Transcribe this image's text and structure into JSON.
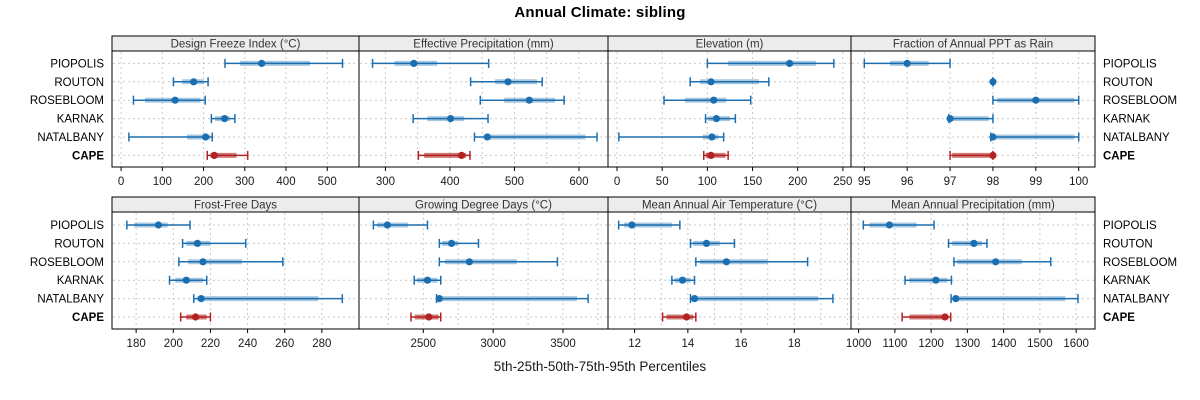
{
  "chart_data": {
    "type": "interval",
    "glyph": "5-25-50-75-95 percentile dot-whisker",
    "title": "Annual Climate: sibling",
    "caption": "5th-25th-50th-75th-95th Percentiles",
    "locations": [
      "PIOPOLIS",
      "ROUTON",
      "ROSEBLOOM",
      "KARNAK",
      "NATALBANY",
      "CAPE"
    ],
    "highlight_location": "CAPE",
    "percentiles": [
      5,
      25,
      50,
      75,
      95
    ],
    "colors": {
      "series_blue": "#1b6fb0",
      "highlight_red": "#b22222",
      "header_fill": "#ececec",
      "panel_border": "#000000",
      "gridline": "#c9c9c9",
      "text": "#1a1a1a"
    },
    "legend_position": "none",
    "grid": "dashed horizontal row guides and vertical tick gridlines",
    "panels": [
      {
        "title": "Design Freeze Index (°C)",
        "row": 0,
        "col": 0,
        "axis_range": [
          -22,
          577
        ],
        "ticks": [
          0,
          100,
          200,
          300,
          400,
          500
        ],
        "minor_gridlines": [],
        "series": {
          "PIOPOLIS": [
            252,
            288,
            341,
            458,
            537
          ],
          "ROUTON": [
            127,
            148,
            176,
            200,
            211
          ],
          "ROSEBLOOM": [
            30,
            58,
            131,
            193,
            204
          ],
          "KARNAK": [
            219,
            228,
            251,
            264,
            276
          ],
          "NATALBANY": [
            19,
            160,
            205,
            216,
            221
          ],
          "CAPE": [
            209,
            217,
            226,
            280,
            307
          ]
        }
      },
      {
        "title": "Effective Precipitation (mm)",
        "row": 0,
        "col": 1,
        "axis_range": [
          259,
          645
        ],
        "ticks": [
          300,
          400,
          500,
          600
        ],
        "minor_gridlines": [
          350,
          450,
          550
        ],
        "series": {
          "PIOPOLIS": [
            280,
            314,
            344,
            380,
            460
          ],
          "ROUTON": [
            432,
            470,
            490,
            535,
            543
          ],
          "ROSEBLOOM": [
            447,
            484,
            523,
            563,
            577
          ],
          "KARNAK": [
            343,
            365,
            401,
            422,
            459
          ],
          "NATALBANY": [
            438,
            452,
            458,
            610,
            628
          ],
          "CAPE": [
            351,
            360,
            418,
            425,
            431
          ]
        }
      },
      {
        "title": "Elevation (m)",
        "row": 0,
        "col": 2,
        "axis_range": [
          -10,
          259
        ],
        "ticks": [
          0,
          50,
          100,
          150,
          200,
          250
        ],
        "minor_gridlines": [],
        "series": {
          "PIOPOLIS": [
            100,
            123,
            191,
            220,
            240
          ],
          "ROUTON": [
            81,
            92,
            104,
            157,
            168
          ],
          "ROSEBLOOM": [
            52,
            75,
            107,
            121,
            148
          ],
          "KARNAK": [
            98,
            101,
            110,
            125,
            131
          ],
          "NATALBANY": [
            2,
            95,
            105,
            112,
            118
          ],
          "CAPE": [
            96,
            98,
            104,
            120,
            123
          ]
        }
      },
      {
        "title": "Fraction of Annual PPT as Rain",
        "row": 0,
        "col": 3,
        "axis_range": [
          94.69,
          100.38
        ],
        "ticks": [
          95,
          96,
          97,
          98,
          99,
          100
        ],
        "minor_gridlines": [],
        "series": {
          "PIOPOLIS": [
            95.0,
            95.6,
            96.0,
            96.5,
            97.0
          ],
          "ROUTON": [
            98.0,
            98.0,
            98.0,
            98.0,
            98.0
          ],
          "ROSEBLOOM": [
            98.0,
            98.1,
            99.0,
            99.9,
            100.0
          ],
          "KARNAK": [
            96.97,
            97.0,
            97.0,
            97.9,
            98.0
          ],
          "NATALBANY": [
            97.95,
            98.0,
            98.0,
            99.9,
            100.0
          ],
          "CAPE": [
            97.0,
            97.05,
            98.0,
            98.0,
            98.0
          ]
        }
      },
      {
        "title": "Frost-Free Days",
        "row": 1,
        "col": 0,
        "axis_range": [
          167,
          300
        ],
        "ticks": [
          180,
          200,
          220,
          240,
          260,
          280
        ],
        "minor_gridlines": [],
        "series": {
          "PIOPOLIS": [
            175,
            179,
            192,
            197,
            209
          ],
          "ROUTON": [
            205,
            207,
            213,
            220,
            239
          ],
          "ROSEBLOOM": [
            203,
            208,
            216,
            237,
            259
          ],
          "KARNAK": [
            198,
            201,
            207,
            216,
            218
          ],
          "NATALBANY": [
            211,
            213,
            215,
            278,
            291
          ],
          "CAPE": [
            204,
            207,
            212,
            218,
            220
          ]
        }
      },
      {
        "title": "Growing Degree Days (°C)",
        "row": 1,
        "col": 1,
        "axis_range": [
          2040,
          3822
        ],
        "ticks": [
          2500,
          3000,
          3500
        ],
        "minor_gridlines": [
          2250,
          2750,
          3250,
          3750
        ],
        "series": {
          "PIOPOLIS": [
            2143,
            2170,
            2243,
            2390,
            2530
          ],
          "ROUTON": [
            2615,
            2635,
            2702,
            2750,
            2895
          ],
          "ROSEBLOOM": [
            2615,
            2655,
            2830,
            3170,
            3460
          ],
          "KARNAK": [
            2435,
            2455,
            2530,
            2600,
            2625
          ],
          "NATALBANY": [
            2595,
            2610,
            2615,
            3600,
            3680
          ],
          "CAPE": [
            2412,
            2440,
            2540,
            2610,
            2625
          ]
        }
      },
      {
        "title": "Mean Annual Air Temperature (°C)",
        "row": 1,
        "col": 2,
        "axis_range": [
          11.0,
          20.13
        ],
        "ticks": [
          12,
          14,
          16,
          18
        ],
        "minor_gridlines": [
          13,
          15,
          17,
          19,
          20
        ],
        "series": {
          "PIOPOLIS": [
            11.4,
            11.6,
            11.9,
            13.4,
            13.7
          ],
          "ROUTON": [
            14.1,
            14.2,
            14.7,
            15.2,
            15.75
          ],
          "ROSEBLOOM": [
            14.3,
            14.45,
            15.45,
            17.0,
            18.5
          ],
          "KARNAK": [
            13.4,
            13.5,
            13.8,
            14.1,
            14.25
          ],
          "NATALBANY": [
            14.1,
            14.2,
            14.25,
            18.9,
            19.45
          ],
          "CAPE": [
            13.05,
            13.2,
            13.95,
            14.2,
            14.3
          ]
        }
      },
      {
        "title": "Mean Annual Precipitation (mm)",
        "row": 1,
        "col": 3,
        "axis_range": [
          979,
          1652
        ],
        "ticks": [
          1000,
          1100,
          1200,
          1300,
          1400,
          1500,
          1600
        ],
        "minor_gridlines": [],
        "series": {
          "PIOPOLIS": [
            1013,
            1030,
            1085,
            1160,
            1208
          ],
          "ROUTON": [
            1248,
            1258,
            1318,
            1340,
            1354
          ],
          "ROSEBLOOM": [
            1263,
            1272,
            1378,
            1450,
            1530
          ],
          "KARNAK": [
            1128,
            1140,
            1213,
            1245,
            1256
          ],
          "NATALBANY": [
            1255,
            1262,
            1268,
            1570,
            1605
          ],
          "CAPE": [
            1120,
            1140,
            1238,
            1248,
            1254
          ]
        }
      }
    ]
  }
}
